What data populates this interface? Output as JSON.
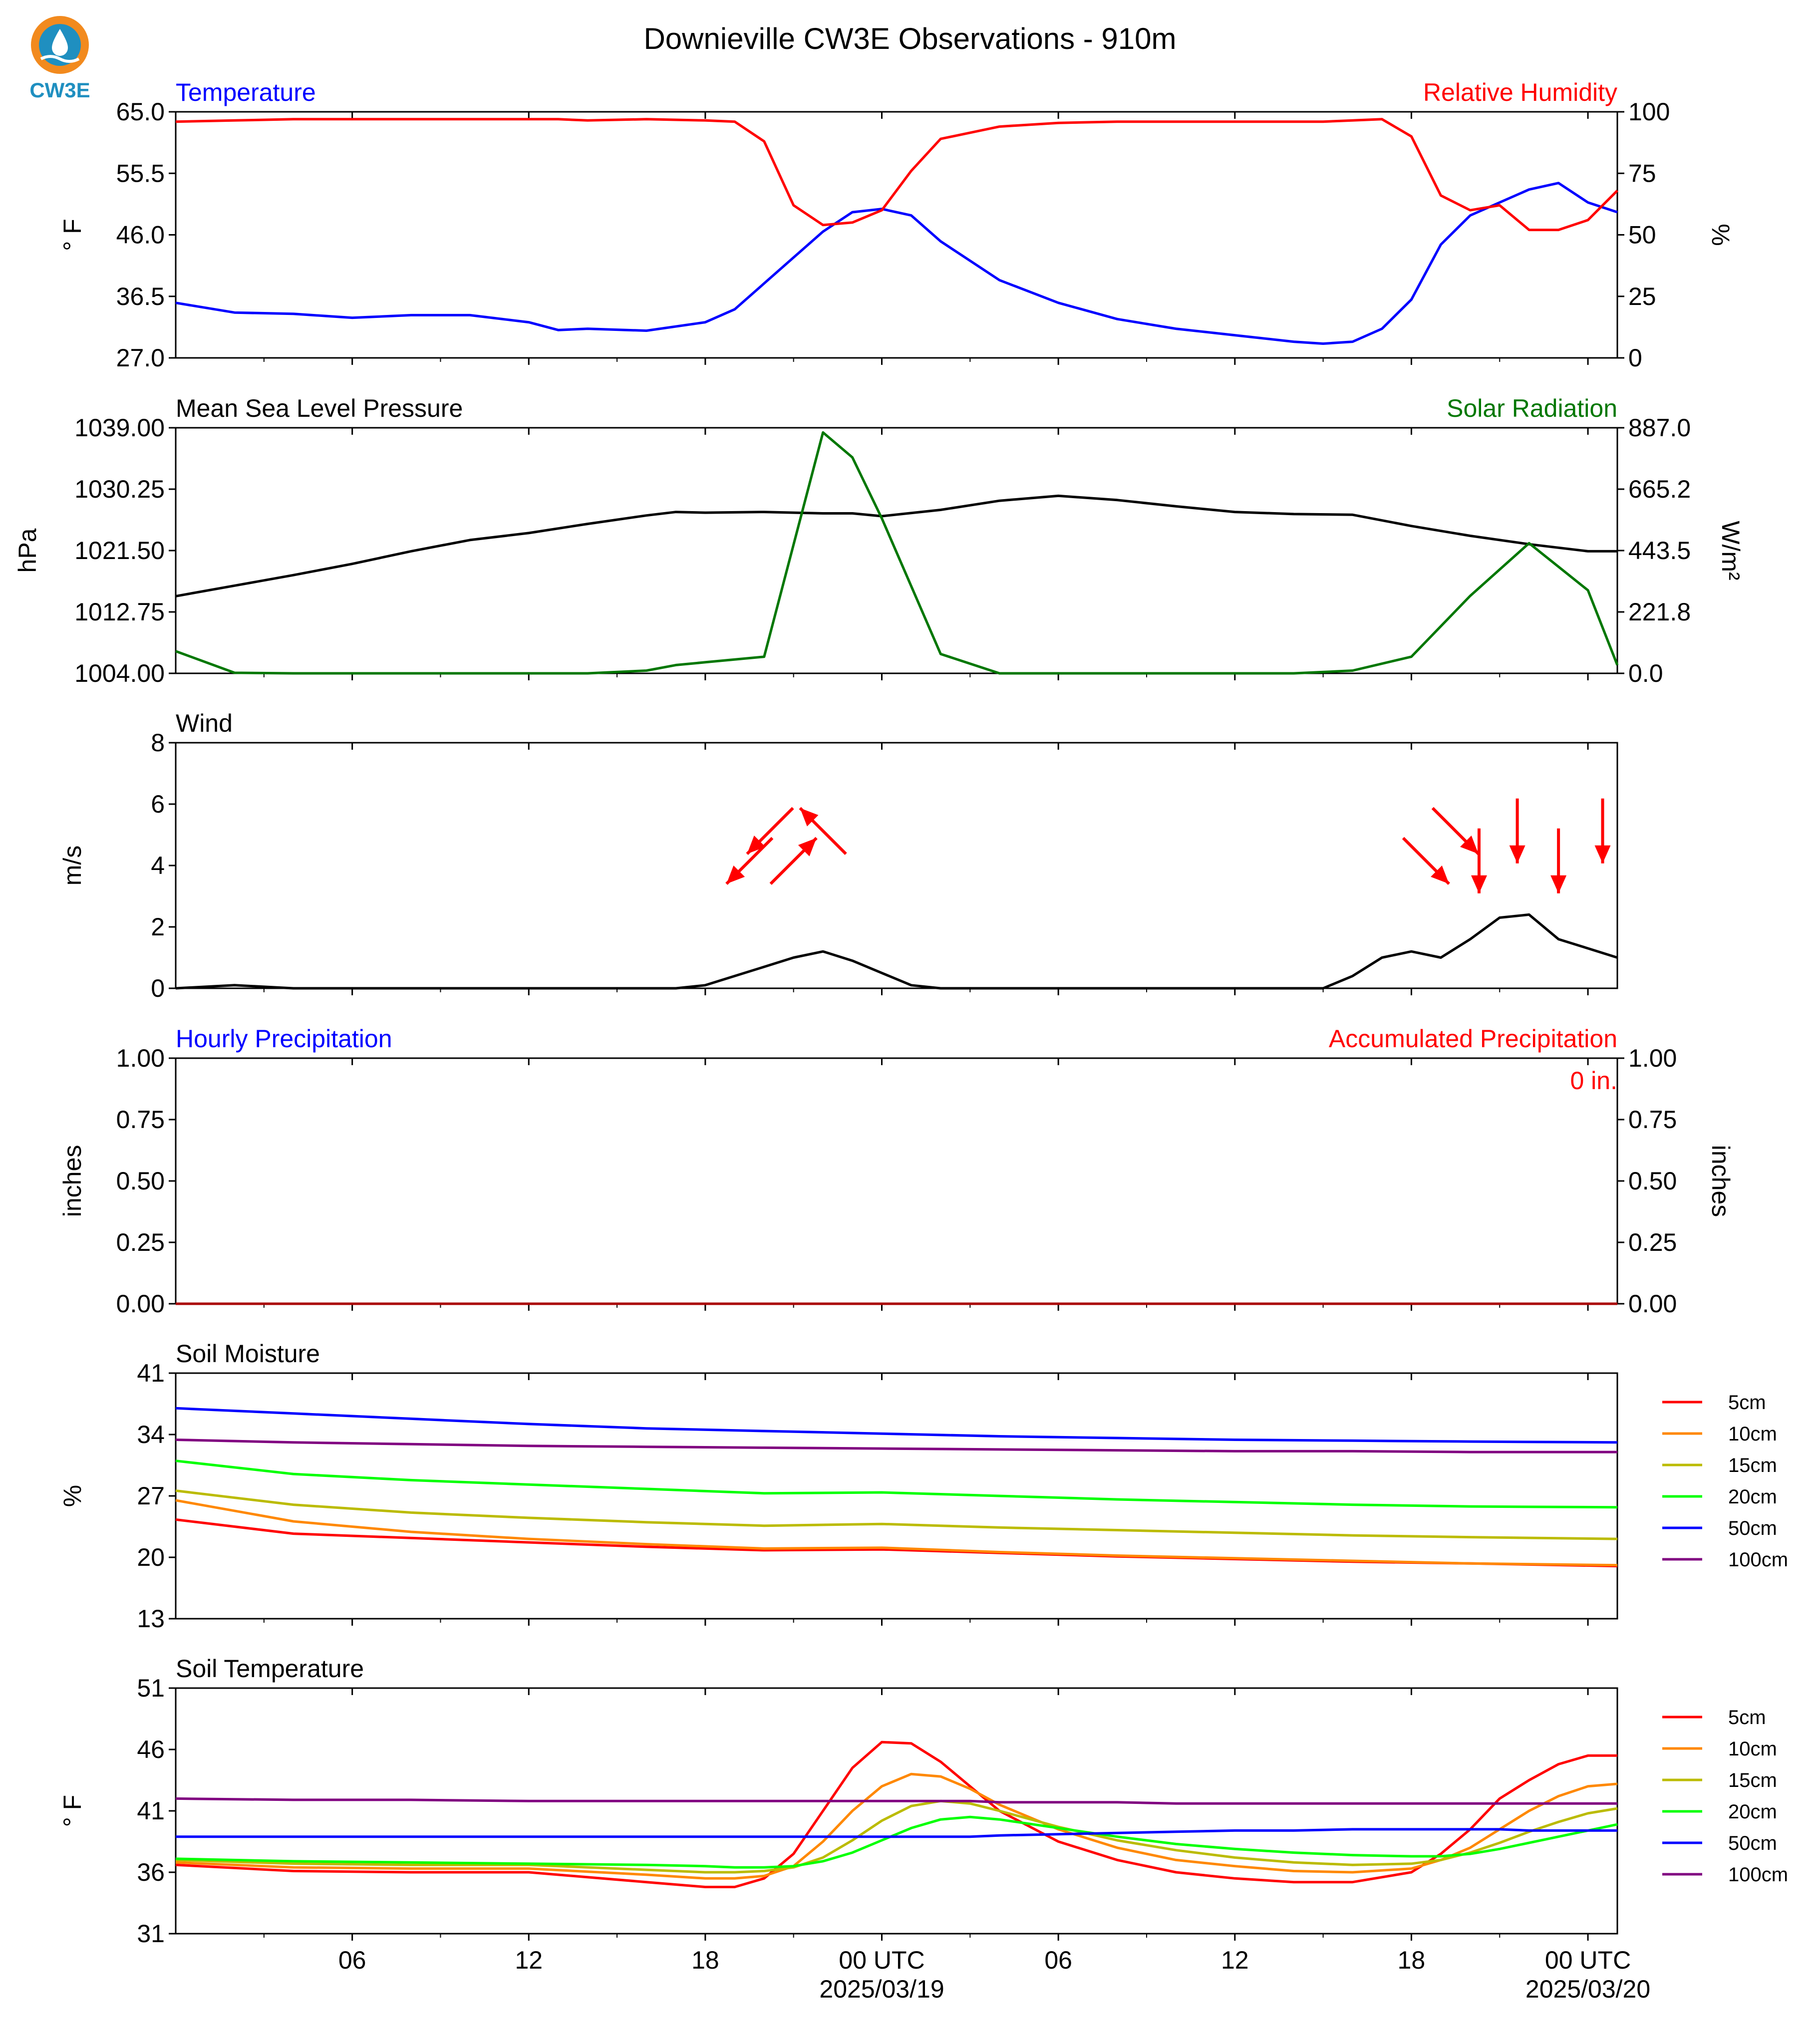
{
  "title": "Downieville CW3E Observations - 910m",
  "logo": {
    "text": "CW3E",
    "color": "#1f8fc0"
  },
  "time_axis": {
    "ticks": [
      "06",
      "12",
      "18",
      "00 UTC",
      "06",
      "12",
      "18",
      "00 UTC"
    ],
    "dates": [
      "2025/03/19",
      "2025/03/20"
    ]
  },
  "chart_data": [
    {
      "type": "line",
      "panel": "temperature_humidity",
      "left_title": "Temperature",
      "right_title": "Relative Humidity",
      "ylabel": "° F",
      "ylabel_right": "%",
      "ylim": [
        27.0,
        65.0
      ],
      "ylim_right": [
        0,
        100
      ],
      "yticks": [
        "27.0",
        "36.5",
        "46.0",
        "55.5",
        "65.0"
      ],
      "yticks_right": [
        "0",
        "25",
        "50",
        "75",
        "100"
      ],
      "x": [
        0,
        2,
        4,
        6,
        8,
        10,
        12,
        13,
        14,
        16,
        18,
        19,
        20,
        21,
        22,
        23,
        24,
        25,
        26,
        28,
        30,
        32,
        34,
        36,
        38,
        39,
        40,
        41,
        42,
        43,
        44,
        45,
        46,
        47,
        48,
        49
      ],
      "series": [
        {
          "name": "Temperature",
          "axis": "left",
          "color": "#0000ff",
          "values": [
            35.5,
            34.0,
            33.8,
            33.2,
            33.6,
            33.6,
            32.5,
            31.3,
            31.5,
            31.2,
            32.5,
            34.5,
            38.5,
            42.5,
            46.5,
            49.5,
            50.0,
            49.0,
            45.0,
            39.0,
            35.5,
            33.0,
            31.5,
            30.5,
            29.5,
            29.2,
            29.5,
            31.5,
            36.0,
            44.5,
            49.0,
            51.0,
            53.0,
            54.0,
            51.0,
            49.5
          ]
        },
        {
          "name": "Relative Humidity",
          "axis": "right",
          "color": "#ff0000",
          "values": [
            96,
            96.5,
            97,
            97,
            97,
            97,
            97,
            97,
            96.5,
            97,
            96.5,
            96,
            88,
            62,
            54,
            55,
            60,
            76,
            89,
            94,
            95.5,
            96,
            96,
            96,
            96,
            96,
            96.5,
            97,
            90,
            66,
            60,
            62,
            52,
            52,
            56,
            68
          ]
        }
      ]
    },
    {
      "type": "line",
      "panel": "pressure_solar",
      "left_title": "Mean Sea Level Pressure",
      "right_title": "Solar Radiation",
      "ylabel": "hPa",
      "ylabel_right": "W/m²",
      "ylim": [
        1004.0,
        1039.0
      ],
      "ylim_right": [
        0.0,
        887.0
      ],
      "yticks": [
        "1004.00",
        "1012.75",
        "1021.50",
        "1030.25",
        "1039.00"
      ],
      "yticks_right": [
        "0.0",
        "221.8",
        "443.5",
        "665.2",
        "887.0"
      ],
      "x": [
        0,
        2,
        4,
        6,
        8,
        10,
        12,
        14,
        16,
        17,
        18,
        20,
        22,
        23,
        24,
        26,
        28,
        30,
        32,
        34,
        36,
        38,
        40,
        42,
        44,
        46,
        48,
        49
      ],
      "series": [
        {
          "name": "Mean Sea Level Pressure",
          "axis": "left",
          "color": "#000000",
          "values": [
            1015.0,
            1016.5,
            1018.0,
            1019.6,
            1021.4,
            1023.0,
            1024.0,
            1025.3,
            1026.5,
            1027.0,
            1026.9,
            1027.0,
            1026.8,
            1026.8,
            1026.4,
            1027.3,
            1028.6,
            1029.3,
            1028.7,
            1027.8,
            1027.0,
            1026.7,
            1026.6,
            1025.0,
            1023.6,
            1022.4,
            1021.4,
            1021.4
          ]
        },
        {
          "name": "Solar Radiation",
          "axis": "right",
          "color": "#007700",
          "values": [
            80,
            2,
            0,
            0,
            0,
            0,
            0,
            0,
            10,
            30,
            40,
            60,
            870,
            780,
            560,
            70,
            0,
            0,
            0,
            0,
            0,
            0,
            10,
            60,
            280,
            470,
            300,
            30
          ]
        }
      ]
    },
    {
      "type": "line",
      "panel": "wind",
      "left_title": "Wind",
      "ylabel": "m/s",
      "ylim": [
        0,
        8
      ],
      "yticks": [
        "0",
        "2",
        "4",
        "6",
        "8"
      ],
      "x": [
        0,
        2,
        4,
        6,
        8,
        10,
        12,
        14,
        16,
        17,
        18,
        19,
        20,
        21,
        22,
        23,
        24,
        25,
        26,
        28,
        30,
        32,
        34,
        36,
        38,
        39,
        40,
        41,
        42,
        43,
        44,
        45,
        46,
        47,
        48,
        49
      ],
      "series": [
        {
          "name": "Wind",
          "axis": "left",
          "color": "#000000",
          "values": [
            0.0,
            0.1,
            0.0,
            0.0,
            0.0,
            0.0,
            0.0,
            0.0,
            0.0,
            0.0,
            0.1,
            0.4,
            0.7,
            1.0,
            1.2,
            0.9,
            0.5,
            0.1,
            0.0,
            0.0,
            0.0,
            0.0,
            0.0,
            0.0,
            0.0,
            0.0,
            0.4,
            1.0,
            1.2,
            1.0,
            1.6,
            2.3,
            2.4,
            1.6,
            1.3,
            1.0
          ]
        }
      ],
      "direction_arrows": [
        {
          "x": 19.5,
          "dir": "southwest",
          "color": "#ff0000"
        },
        {
          "x": 20.2,
          "dir": "southwest",
          "color": "#ff0000"
        },
        {
          "x": 21.0,
          "dir": "northeast",
          "color": "#ff0000"
        },
        {
          "x": 22.0,
          "dir": "northwest",
          "color": "#ff0000"
        },
        {
          "x": 42.5,
          "dir": "southeast",
          "color": "#ff0000"
        },
        {
          "x": 43.5,
          "dir": "southeast",
          "color": "#ff0000"
        },
        {
          "x": 44.3,
          "dir": "south",
          "color": "#ff0000"
        },
        {
          "x": 45.6,
          "dir": "south",
          "color": "#ff0000"
        },
        {
          "x": 47.0,
          "dir": "south",
          "color": "#ff0000"
        },
        {
          "x": 48.5,
          "dir": "south",
          "color": "#ff0000"
        }
      ]
    },
    {
      "type": "line",
      "panel": "precipitation",
      "left_title": "Hourly Precipitation",
      "right_title": "Accumulated Precipitation",
      "ylabel": "inches",
      "ylabel_right": "inches",
      "ylim": [
        0.0,
        1.0
      ],
      "ylim_right": [
        0.0,
        1.0
      ],
      "yticks": [
        "0.00",
        "0.25",
        "0.50",
        "0.75",
        "1.00"
      ],
      "yticks_right": [
        "0.00",
        "0.25",
        "0.50",
        "0.75",
        "1.00"
      ],
      "annotation": "0 in.",
      "x": [
        0,
        49
      ],
      "series": [
        {
          "name": "Hourly Precipitation",
          "axis": "left",
          "color": "#0000ff",
          "values": [
            0,
            0
          ]
        },
        {
          "name": "Accumulated Precipitation",
          "axis": "right",
          "color": "#aa0000",
          "values": [
            0,
            0
          ]
        }
      ]
    },
    {
      "type": "line",
      "panel": "soil_moisture",
      "left_title": "Soil Moisture",
      "ylabel": "%",
      "ylim": [
        13,
        41
      ],
      "yticks": [
        "13",
        "20",
        "27",
        "34",
        "41"
      ],
      "legend": "right",
      "x": [
        0,
        4,
        8,
        12,
        16,
        20,
        24,
        28,
        32,
        36,
        40,
        44,
        49
      ],
      "series": [
        {
          "name": "5cm",
          "axis": "left",
          "color": "#ff0000",
          "values": [
            24.3,
            22.7,
            22.2,
            21.7,
            21.2,
            20.8,
            20.9,
            20.5,
            20.1,
            19.8,
            19.5,
            19.3,
            19.0
          ]
        },
        {
          "name": "10cm",
          "axis": "left",
          "color": "#ff8800",
          "values": [
            26.5,
            24.1,
            22.9,
            22.1,
            21.5,
            21.0,
            21.1,
            20.6,
            20.2,
            19.9,
            19.6,
            19.3,
            19.1
          ]
        },
        {
          "name": "15cm",
          "axis": "left",
          "color": "#bbbb00",
          "values": [
            27.6,
            26.0,
            25.1,
            24.5,
            24.0,
            23.6,
            23.8,
            23.4,
            23.1,
            22.8,
            22.5,
            22.3,
            22.1
          ]
        },
        {
          "name": "20cm",
          "axis": "left",
          "color": "#00ff00",
          "values": [
            31.0,
            29.5,
            28.8,
            28.3,
            27.8,
            27.3,
            27.4,
            27.0,
            26.6,
            26.3,
            26.0,
            25.8,
            25.7
          ]
        },
        {
          "name": "50cm",
          "axis": "left",
          "color": "#0000ff",
          "values": [
            37.0,
            36.4,
            35.8,
            35.2,
            34.7,
            34.4,
            34.1,
            33.8,
            33.6,
            33.4,
            33.3,
            33.2,
            33.1
          ]
        },
        {
          "name": "100cm",
          "axis": "left",
          "color": "#800080",
          "values": [
            33.4,
            33.1,
            32.9,
            32.7,
            32.6,
            32.5,
            32.4,
            32.3,
            32.2,
            32.1,
            32.1,
            32.0,
            32.0
          ]
        }
      ]
    },
    {
      "type": "line",
      "panel": "soil_temperature",
      "left_title": "Soil Temperature",
      "ylabel": "° F",
      "ylim": [
        31,
        51
      ],
      "yticks": [
        "31",
        "36",
        "41",
        "46",
        "51"
      ],
      "legend": "right",
      "x": [
        0,
        4,
        8,
        12,
        16,
        18,
        19,
        20,
        21,
        22,
        23,
        24,
        25,
        26,
        27,
        28,
        30,
        32,
        34,
        36,
        38,
        40,
        42,
        43,
        44,
        45,
        46,
        47,
        48,
        49
      ],
      "series": [
        {
          "name": "5cm",
          "axis": "left",
          "color": "#ff0000",
          "values": [
            36.6,
            36.1,
            36.0,
            36.0,
            35.2,
            34.8,
            34.8,
            35.5,
            37.5,
            41.0,
            44.5,
            46.6,
            46.5,
            45.0,
            43.0,
            41.0,
            38.5,
            37.0,
            36.0,
            35.5,
            35.2,
            35.2,
            36.0,
            37.5,
            39.5,
            42.0,
            43.5,
            44.8,
            45.5,
            45.5
          ]
        },
        {
          "name": "10cm",
          "axis": "left",
          "color": "#ff8800",
          "values": [
            36.8,
            36.4,
            36.3,
            36.3,
            35.8,
            35.5,
            35.5,
            35.7,
            36.5,
            38.5,
            41.0,
            43.0,
            44.0,
            43.8,
            42.8,
            41.5,
            39.5,
            38.0,
            37.0,
            36.5,
            36.1,
            36.0,
            36.3,
            37.0,
            38.0,
            39.5,
            41.0,
            42.2,
            43.0,
            43.2
          ]
        },
        {
          "name": "15cm",
          "axis": "left",
          "color": "#bbbb00",
          "values": [
            37.0,
            36.7,
            36.6,
            36.6,
            36.2,
            36.0,
            36.0,
            36.1,
            36.4,
            37.2,
            38.6,
            40.2,
            41.4,
            41.8,
            41.6,
            41.0,
            39.7,
            38.6,
            37.8,
            37.2,
            36.8,
            36.6,
            36.7,
            37.0,
            37.6,
            38.4,
            39.3,
            40.1,
            40.8,
            41.2
          ]
        },
        {
          "name": "20cm",
          "axis": "left",
          "color": "#00ff00",
          "values": [
            37.1,
            36.9,
            36.8,
            36.7,
            36.6,
            36.5,
            36.4,
            36.4,
            36.5,
            36.9,
            37.6,
            38.6,
            39.6,
            40.3,
            40.5,
            40.3,
            39.6,
            38.9,
            38.3,
            37.9,
            37.6,
            37.4,
            37.3,
            37.3,
            37.5,
            37.9,
            38.4,
            38.9,
            39.4,
            39.9
          ]
        },
        {
          "name": "50cm",
          "axis": "left",
          "color": "#0000ff",
          "values": [
            38.9,
            38.9,
            38.9,
            38.9,
            38.9,
            38.9,
            38.9,
            38.9,
            38.9,
            38.9,
            38.9,
            38.9,
            38.9,
            38.9,
            38.9,
            39.0,
            39.1,
            39.2,
            39.3,
            39.4,
            39.4,
            39.5,
            39.5,
            39.5,
            39.5,
            39.5,
            39.4,
            39.4,
            39.4,
            39.4
          ]
        },
        {
          "name": "100cm",
          "axis": "left",
          "color": "#800080",
          "values": [
            42.0,
            41.9,
            41.9,
            41.8,
            41.8,
            41.8,
            41.8,
            41.8,
            41.8,
            41.8,
            41.8,
            41.8,
            41.8,
            41.8,
            41.8,
            41.7,
            41.7,
            41.7,
            41.6,
            41.6,
            41.6,
            41.6,
            41.6,
            41.6,
            41.6,
            41.6,
            41.6,
            41.6,
            41.6,
            41.6
          ]
        }
      ]
    }
  ]
}
